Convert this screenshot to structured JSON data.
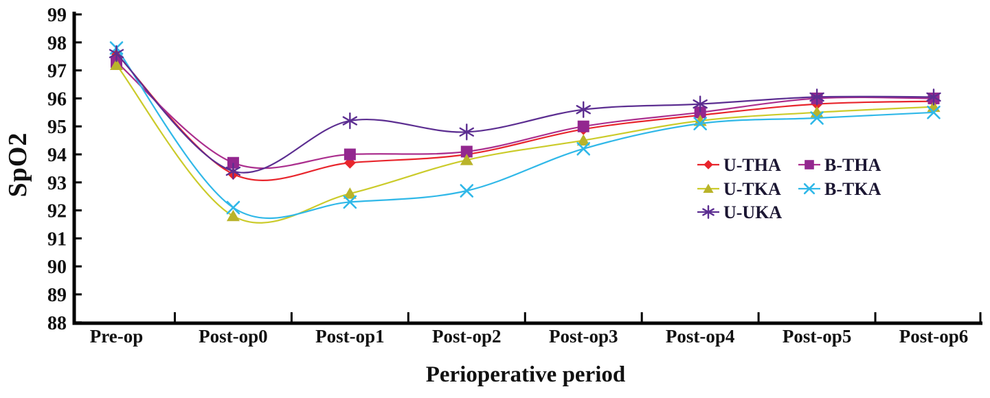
{
  "chart_data": {
    "type": "line",
    "title": "",
    "xlabel": "Perioperative period",
    "ylabel": "SpO2",
    "categories": [
      "Pre-op",
      "Post-op0",
      "Post-op1",
      "Post-op2",
      "Post-op3",
      "Post-op4",
      "Post-op5",
      "Post-op6"
    ],
    "ylim": [
      88,
      99
    ],
    "ytick_step": 1,
    "y_tick_labels": [
      "99",
      "98",
      "97",
      "96",
      "95",
      "94",
      "93",
      "92",
      "91",
      "90",
      "89",
      "88"
    ],
    "grid": false,
    "smooth": true,
    "legend_position": "inside-right",
    "series": [
      {
        "name": "U-THA",
        "marker": "diamond",
        "color": "#e8252c",
        "marker_color": "#e8252c",
        "values": [
          97.6,
          93.3,
          93.7,
          94.0,
          94.9,
          95.4,
          95.8,
          95.9
        ]
      },
      {
        "name": "B-THA",
        "marker": "square",
        "color": "#ab2f8e",
        "marker_color": "#93278f",
        "values": [
          97.3,
          93.7,
          94.0,
          94.1,
          95.0,
          95.5,
          96.0,
          96.0
        ]
      },
      {
        "name": "U-TKA",
        "marker": "triangle",
        "color": "#cbcb2a",
        "marker_color": "#b9b32a",
        "values": [
          97.2,
          91.8,
          92.6,
          93.8,
          94.5,
          95.2,
          95.5,
          95.7
        ]
      },
      {
        "name": "B-TKA",
        "marker": "x",
        "color": "#30b8e8",
        "marker_color": "#30b8e8",
        "values": [
          97.8,
          92.1,
          92.3,
          92.7,
          94.2,
          95.1,
          95.3,
          95.5
        ]
      },
      {
        "name": "U-UKA",
        "marker": "asterisk",
        "color": "#5c2e91",
        "marker_color": "#5c2e91",
        "values": [
          97.6,
          93.4,
          95.2,
          94.8,
          95.6,
          95.8,
          96.05,
          96.05
        ]
      }
    ],
    "legend_rows": [
      [
        "U-THA",
        "B-THA"
      ],
      [
        "U-TKA",
        "B-TKA"
      ],
      [
        "U-UKA"
      ]
    ],
    "axis_color": "#000000",
    "text_color": "#1c1733"
  }
}
